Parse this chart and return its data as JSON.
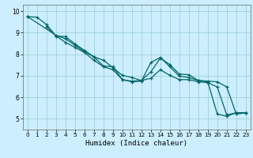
{
  "xlabel": "Humidex (Indice chaleur)",
  "bg_color": "#cceeff",
  "grid_color": "#99cccc",
  "line_color": "#006666",
  "xlim": [
    -0.5,
    23.5
  ],
  "ylim": [
    4.5,
    10.3
  ],
  "yticks": [
    5,
    6,
    7,
    8,
    9,
    10
  ],
  "xticks": [
    0,
    1,
    2,
    3,
    4,
    5,
    6,
    7,
    8,
    9,
    10,
    11,
    12,
    13,
    14,
    15,
    16,
    17,
    18,
    19,
    20,
    21,
    22,
    23
  ],
  "series1_x": [
    0,
    1,
    2,
    3,
    4,
    5,
    6,
    7,
    8,
    9,
    10,
    11,
    12,
    13,
    14,
    15,
    16,
    17,
    18,
    19,
    20,
    21,
    22,
    23
  ],
  "series1_y": [
    9.75,
    9.72,
    9.38,
    8.85,
    8.82,
    8.48,
    8.18,
    7.88,
    7.45,
    7.42,
    6.82,
    6.75,
    6.78,
    7.18,
    7.82,
    7.52,
    7.08,
    7.05,
    6.78,
    6.75,
    6.72,
    6.48,
    5.22,
    5.28
  ],
  "series2_x": [
    2,
    3,
    4,
    5,
    6,
    7,
    8,
    9,
    10,
    11,
    12,
    13,
    14,
    15,
    16,
    17,
    18,
    19,
    20,
    21,
    22,
    23
  ],
  "series2_y": [
    9.28,
    8.85,
    8.55,
    8.32,
    8.08,
    7.72,
    7.42,
    7.28,
    6.82,
    6.72,
    6.75,
    7.62,
    7.85,
    7.42,
    6.98,
    6.92,
    6.78,
    6.72,
    5.22,
    5.12,
    5.28,
    5.28
  ],
  "series3_x": [
    0,
    3,
    4,
    5,
    6,
    7,
    8,
    9,
    10,
    11,
    12,
    13,
    14,
    15,
    16,
    17,
    18,
    19,
    20,
    21,
    22,
    23
  ],
  "series3_y": [
    9.75,
    8.88,
    8.72,
    8.42,
    8.12,
    7.88,
    7.72,
    7.38,
    7.02,
    6.92,
    6.78,
    6.88,
    7.28,
    7.02,
    6.82,
    6.82,
    6.72,
    6.68,
    6.48,
    5.18,
    5.28,
    5.28
  ]
}
